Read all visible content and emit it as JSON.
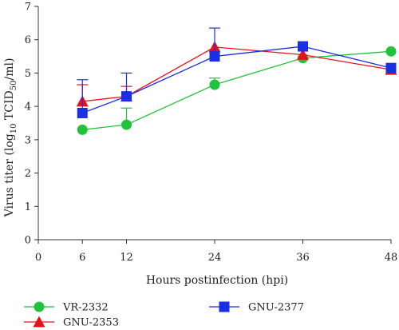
{
  "chart_data": {
    "type": "line",
    "title": "",
    "xlabel": "Hours postinfection (hpi)",
    "ylabel": "Virus titer (log10 TCID50/ml)",
    "ylabel_parts": {
      "pre": "Virus titer (log",
      "sub1": "10",
      "mid": " TCID",
      "sub2": "50",
      "post": "/ml)"
    },
    "x_tick_labels": [
      "0",
      "6",
      "12",
      "24",
      "36",
      "48"
    ],
    "y_tick_labels": [
      "0",
      "1",
      "2",
      "3",
      "4",
      "5",
      "6",
      "7"
    ],
    "ylim": [
      0,
      7
    ],
    "grid": false,
    "legend_position": "bottom",
    "categories": [
      "6",
      "12",
      "24",
      "36",
      "48"
    ],
    "series": [
      {
        "name": "VR-2332",
        "color": "#22c33a",
        "marker": "circle",
        "values": [
          3.3,
          3.45,
          4.65,
          5.45,
          5.65
        ],
        "error_up": [
          0,
          0,
          0.2,
          0,
          0
        ],
        "error_down": [
          0,
          0.5,
          0,
          0,
          0
        ]
      },
      {
        "name": "GNU-2353",
        "color": "#e8101a",
        "marker": "triangle",
        "values": [
          4.15,
          4.3,
          5.78,
          5.55,
          5.1
        ],
        "error_up": [
          0.5,
          0.3,
          0,
          0,
          0
        ],
        "error_down": [
          0,
          0,
          0,
          0,
          0
        ]
      },
      {
        "name": "GNU-2377",
        "color": "#1a2ee6",
        "marker": "square",
        "values": [
          3.8,
          4.3,
          5.5,
          5.8,
          5.15
        ],
        "error_up": [
          1.0,
          0.7,
          0.85,
          0,
          0
        ],
        "error_down": [
          0,
          0,
          0,
          0,
          0
        ]
      }
    ]
  }
}
